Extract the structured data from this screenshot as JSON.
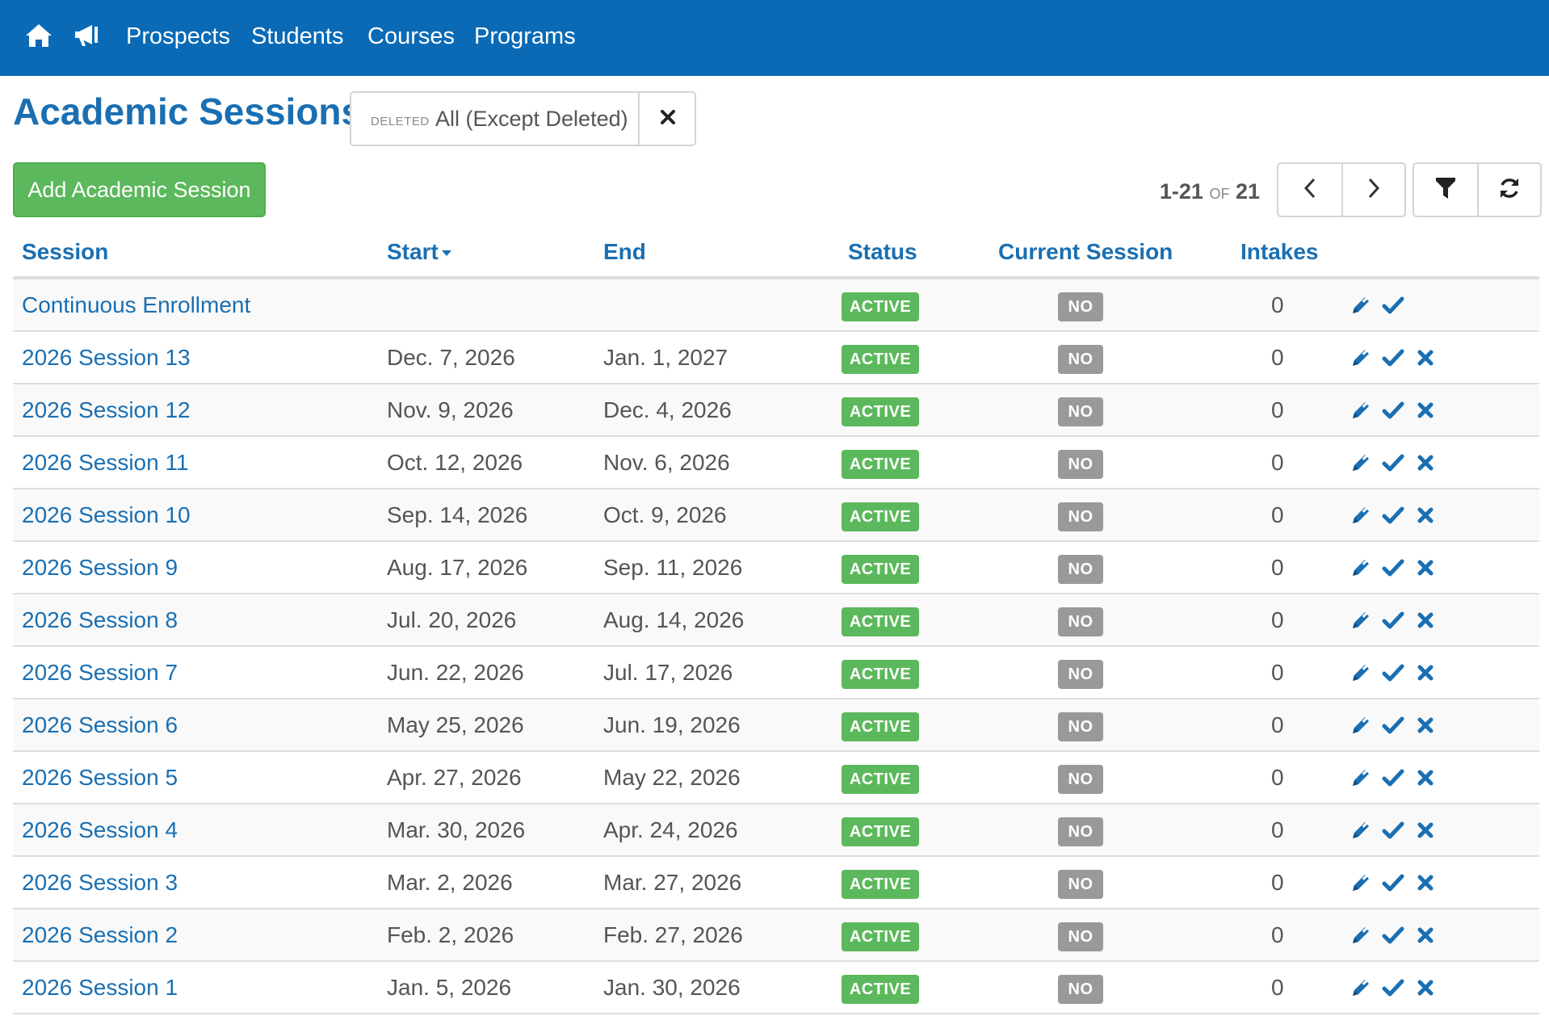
{
  "nav": {
    "home_icon": "home-icon",
    "announce_icon": "megaphone-icon",
    "links": [
      "Prospects",
      "Students",
      "Courses",
      "Programs"
    ],
    "bg_color": "#0a6ab5"
  },
  "page": {
    "title": "Academic Sessions"
  },
  "filter": {
    "label": "DELETED",
    "value": "All (Except Deleted)",
    "clear_icon": "close-icon"
  },
  "toolbar": {
    "add_label": "Add Academic Session",
    "pager_range": "1-21",
    "pager_of": "OF",
    "pager_total": "21",
    "prev_icon": "chevron-left-icon",
    "next_icon": "chevron-right-icon",
    "filter_icon": "filter-icon",
    "refresh_icon": "refresh-icon"
  },
  "table": {
    "headers": {
      "session": "Session",
      "start": "Start",
      "end": "End",
      "status": "Status",
      "current": "Current Session",
      "intakes": "Intakes"
    },
    "sorted_by": "Start",
    "rows": [
      {
        "session": "Continuous Enrollment",
        "start": "",
        "end": "",
        "status": "ACTIVE",
        "current": "NO",
        "intakes": "0",
        "deletable": false
      },
      {
        "session": "2026 Session 13",
        "start": "Dec. 7, 2026",
        "end": "Jan. 1, 2027",
        "status": "ACTIVE",
        "current": "NO",
        "intakes": "0",
        "deletable": true
      },
      {
        "session": "2026 Session 12",
        "start": "Nov. 9, 2026",
        "end": "Dec. 4, 2026",
        "status": "ACTIVE",
        "current": "NO",
        "intakes": "0",
        "deletable": true
      },
      {
        "session": "2026 Session 11",
        "start": "Oct. 12, 2026",
        "end": "Nov. 6, 2026",
        "status": "ACTIVE",
        "current": "NO",
        "intakes": "0",
        "deletable": true
      },
      {
        "session": "2026 Session 10",
        "start": "Sep. 14, 2026",
        "end": "Oct. 9, 2026",
        "status": "ACTIVE",
        "current": "NO",
        "intakes": "0",
        "deletable": true
      },
      {
        "session": "2026 Session 9",
        "start": "Aug. 17, 2026",
        "end": "Sep. 11, 2026",
        "status": "ACTIVE",
        "current": "NO",
        "intakes": "0",
        "deletable": true
      },
      {
        "session": "2026 Session 8",
        "start": "Jul. 20, 2026",
        "end": "Aug. 14, 2026",
        "status": "ACTIVE",
        "current": "NO",
        "intakes": "0",
        "deletable": true
      },
      {
        "session": "2026 Session 7",
        "start": "Jun. 22, 2026",
        "end": "Jul. 17, 2026",
        "status": "ACTIVE",
        "current": "NO",
        "intakes": "0",
        "deletable": true
      },
      {
        "session": "2026 Session 6",
        "start": "May 25, 2026",
        "end": "Jun. 19, 2026",
        "status": "ACTIVE",
        "current": "NO",
        "intakes": "0",
        "deletable": true
      },
      {
        "session": "2026 Session 5",
        "start": "Apr. 27, 2026",
        "end": "May 22, 2026",
        "status": "ACTIVE",
        "current": "NO",
        "intakes": "0",
        "deletable": true
      },
      {
        "session": "2026 Session 4",
        "start": "Mar. 30, 2026",
        "end": "Apr. 24, 2026",
        "status": "ACTIVE",
        "current": "NO",
        "intakes": "0",
        "deletable": true
      },
      {
        "session": "2026 Session 3",
        "start": "Mar. 2, 2026",
        "end": "Mar. 27, 2026",
        "status": "ACTIVE",
        "current": "NO",
        "intakes": "0",
        "deletable": true
      },
      {
        "session": "2026 Session 2",
        "start": "Feb. 2, 2026",
        "end": "Feb. 27, 2026",
        "status": "ACTIVE",
        "current": "NO",
        "intakes": "0",
        "deletable": true
      },
      {
        "session": "2026 Session 1",
        "start": "Jan. 5, 2026",
        "end": "Jan. 30, 2026",
        "status": "ACTIVE",
        "current": "NO",
        "intakes": "0",
        "deletable": true
      }
    ]
  },
  "colors": {
    "link": "#1a6fb2",
    "active_badge": "#5cb85c",
    "no_badge": "#999999",
    "add_button": "#5cb85c"
  }
}
